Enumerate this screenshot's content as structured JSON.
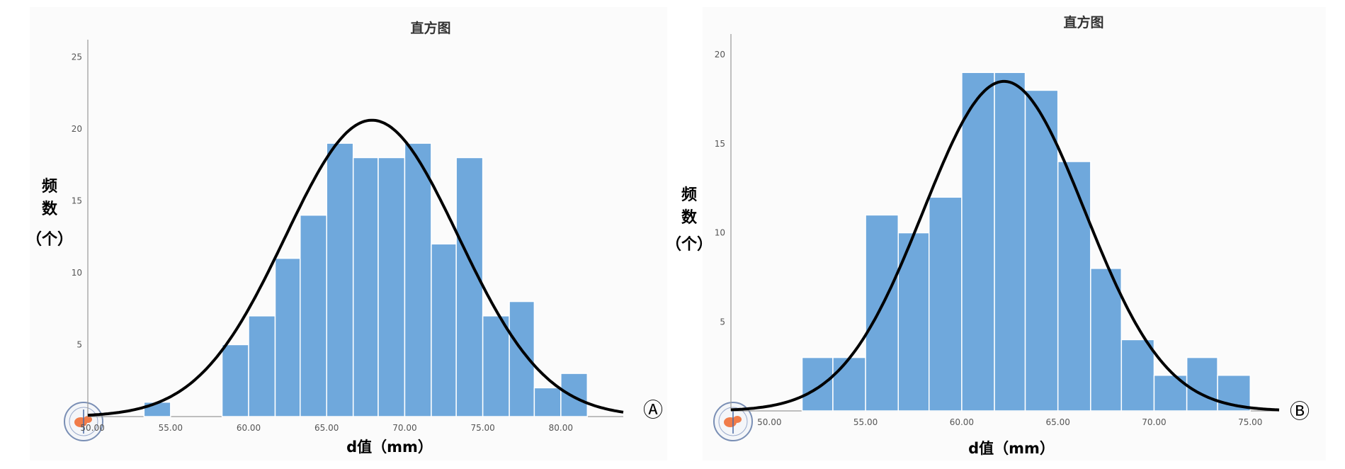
{
  "chart_data": [
    {
      "panel": "A",
      "type": "bar",
      "subtype": "histogram-with-normal-curve",
      "title": "直方图",
      "xlabel": "d值（mm）",
      "ylabel_lines": [
        "频",
        "数",
        "（个）"
      ],
      "bin_width": 1.67,
      "bin_start": 50.0,
      "bins": [
        {
          "x0": 53.3,
          "x1": 55.0,
          "count": 1
        },
        {
          "x0": 58.3,
          "x1": 60.0,
          "count": 5
        },
        {
          "x0": 60.0,
          "x1": 61.7,
          "count": 7
        },
        {
          "x0": 61.7,
          "x1": 63.3,
          "count": 11
        },
        {
          "x0": 63.3,
          "x1": 65.0,
          "count": 14
        },
        {
          "x0": 65.0,
          "x1": 66.7,
          "count": 19
        },
        {
          "x0": 66.7,
          "x1": 68.3,
          "count": 18
        },
        {
          "x0": 68.3,
          "x1": 70.0,
          "count": 18
        },
        {
          "x0": 70.0,
          "x1": 71.7,
          "count": 19
        },
        {
          "x0": 71.7,
          "x1": 73.3,
          "count": 12
        },
        {
          "x0": 73.3,
          "x1": 75.0,
          "count": 18
        },
        {
          "x0": 75.0,
          "x1": 76.7,
          "count": 7
        },
        {
          "x0": 76.7,
          "x1": 78.3,
          "count": 8
        },
        {
          "x0": 78.3,
          "x1": 80.0,
          "count": 2
        },
        {
          "x0": 80.0,
          "x1": 81.7,
          "count": 3
        }
      ],
      "x_ticks": [
        "50.00",
        "55.00",
        "60.00",
        "65.00",
        "70.00",
        "75.00",
        "80.00"
      ],
      "x_tick_values": [
        50,
        55,
        60,
        65,
        70,
        75,
        80
      ],
      "y_ticks": [
        "5",
        "10",
        "15",
        "20",
        "25"
      ],
      "y_tick_values": [
        5,
        10,
        15,
        20,
        25
      ],
      "xlim": [
        49.7,
        84.0
      ],
      "ylim": [
        0,
        26
      ],
      "normal_curve": {
        "mean": 67.9,
        "sd": 5.55,
        "peak": 20.6
      },
      "marker": "Ⓐ",
      "grid": false,
      "bar_color": "#6fa8dc",
      "curve_color": "#000000"
    },
    {
      "panel": "B",
      "type": "bar",
      "subtype": "histogram-with-normal-curve",
      "title": "直方图",
      "xlabel": "d值（mm）",
      "ylabel_lines": [
        "频",
        "数",
        "（个）"
      ],
      "bin_width": 1.67,
      "bins": [
        {
          "x0": 51.7,
          "x1": 53.3,
          "count": 3
        },
        {
          "x0": 53.3,
          "x1": 55.0,
          "count": 3
        },
        {
          "x0": 55.0,
          "x1": 56.7,
          "count": 11
        },
        {
          "x0": 56.7,
          "x1": 58.3,
          "count": 10
        },
        {
          "x0": 58.3,
          "x1": 60.0,
          "count": 12
        },
        {
          "x0": 60.0,
          "x1": 61.7,
          "count": 19
        },
        {
          "x0": 61.7,
          "x1": 63.3,
          "count": 19
        },
        {
          "x0": 63.3,
          "x1": 65.0,
          "count": 18
        },
        {
          "x0": 65.0,
          "x1": 66.7,
          "count": 14
        },
        {
          "x0": 66.7,
          "x1": 68.3,
          "count": 8
        },
        {
          "x0": 68.3,
          "x1": 70.0,
          "count": 4
        },
        {
          "x0": 70.0,
          "x1": 71.7,
          "count": 2
        },
        {
          "x0": 71.7,
          "x1": 73.3,
          "count": 3
        },
        {
          "x0": 73.3,
          "x1": 75.0,
          "count": 2
        }
      ],
      "x_ticks": [
        "50.00",
        "55.00",
        "60.00",
        "65.00",
        "70.00",
        "75.00"
      ],
      "x_tick_values": [
        50,
        55,
        60,
        65,
        70,
        75
      ],
      "y_ticks": [
        "5",
        "10",
        "15",
        "20"
      ],
      "y_tick_values": [
        5,
        10,
        15,
        20
      ],
      "xlim": [
        48.0,
        76.5
      ],
      "ylim": [
        0,
        21
      ],
      "normal_curve": {
        "mean": 62.2,
        "sd": 4.2,
        "peak": 18.5
      },
      "marker": "Ⓑ",
      "grid": false,
      "bar_color": "#6fa8dc",
      "curve_color": "#000000"
    }
  ]
}
